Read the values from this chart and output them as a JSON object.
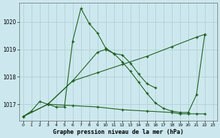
{
  "bg_color": "#cce8ee",
  "grid_color": "#aacccc",
  "line_color": "#1a5c1a",
  "title": "Graphe pression niveau de la mer (hPa)",
  "xlim": [
    -0.5,
    23.5
  ],
  "ylim": [
    1016.4,
    1020.7
  ],
  "yticks": [
    1017,
    1018,
    1019,
    1020
  ],
  "xticks": [
    0,
    1,
    2,
    3,
    4,
    5,
    6,
    7,
    8,
    9,
    10,
    11,
    12,
    13,
    14,
    15,
    16,
    17,
    18,
    19,
    20,
    21,
    22,
    23
  ],
  "series": [
    {
      "x": [
        0,
        1,
        2,
        3,
        4,
        5,
        6,
        7,
        8,
        9,
        10,
        11,
        12,
        13,
        14,
        15,
        16
      ],
      "y": [
        1016.55,
        1016.75,
        1017.1,
        1017.0,
        1016.9,
        1016.9,
        1019.3,
        1020.5,
        1019.95,
        1019.6,
        1019.05,
        1018.85,
        1018.8,
        1018.5,
        1018.1,
        1017.75,
        1017.6
      ]
    },
    {
      "x": [
        0,
        3,
        6,
        9,
        12,
        15,
        18,
        21,
        22
      ],
      "y": [
        1016.55,
        1017.0,
        1017.85,
        1018.15,
        1018.45,
        1018.75,
        1019.1,
        1019.45,
        1019.55
      ]
    },
    {
      "x": [
        3,
        6,
        9,
        10,
        11,
        12,
        13,
        14,
        15,
        16,
        17,
        18,
        19,
        20,
        21,
        22
      ],
      "y": [
        1017.0,
        1017.85,
        1018.9,
        1019.0,
        1018.85,
        1018.55,
        1018.2,
        1017.8,
        1017.4,
        1017.05,
        1016.85,
        1016.75,
        1016.7,
        1016.7,
        1017.35,
        1019.55
      ]
    },
    {
      "x": [
        0,
        3,
        6,
        9,
        12,
        15,
        18,
        19,
        20,
        21,
        22
      ],
      "y": [
        1016.55,
        1017.0,
        1016.95,
        1016.9,
        1016.8,
        1016.75,
        1016.7,
        1016.65,
        1016.65,
        1016.65,
        1016.65
      ]
    }
  ]
}
